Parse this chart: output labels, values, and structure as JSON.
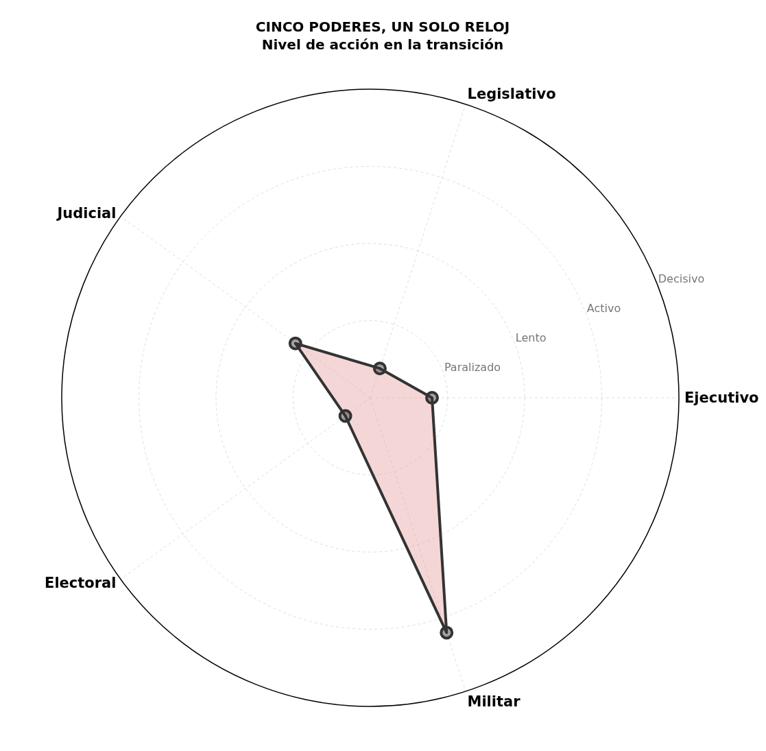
{
  "chart_data": {
    "type": "radar",
    "title": "CINCO PODERES, UN SOLO RELOJ",
    "subtitle": "Nivel de acción en la transición",
    "categories": [
      "Legislativo",
      "Ejecutivo",
      "Militar",
      "Electoral",
      "Judicial"
    ],
    "series": [
      {
        "color": "#333333",
        "values": [
          0.4,
          0.8,
          3.2,
          0.4,
          1.2
        ]
      }
    ],
    "ylim": [
      0,
      4
    ],
    "yticks": [
      {
        "value": 1,
        "label": "Paralizado"
      },
      {
        "value": 2,
        "label": "Lento"
      },
      {
        "value": 3,
        "label": "Activo"
      },
      {
        "value": 4,
        "label": "Decisivo"
      }
    ],
    "grid": true,
    "marker": "circle",
    "line_style": "solid"
  }
}
